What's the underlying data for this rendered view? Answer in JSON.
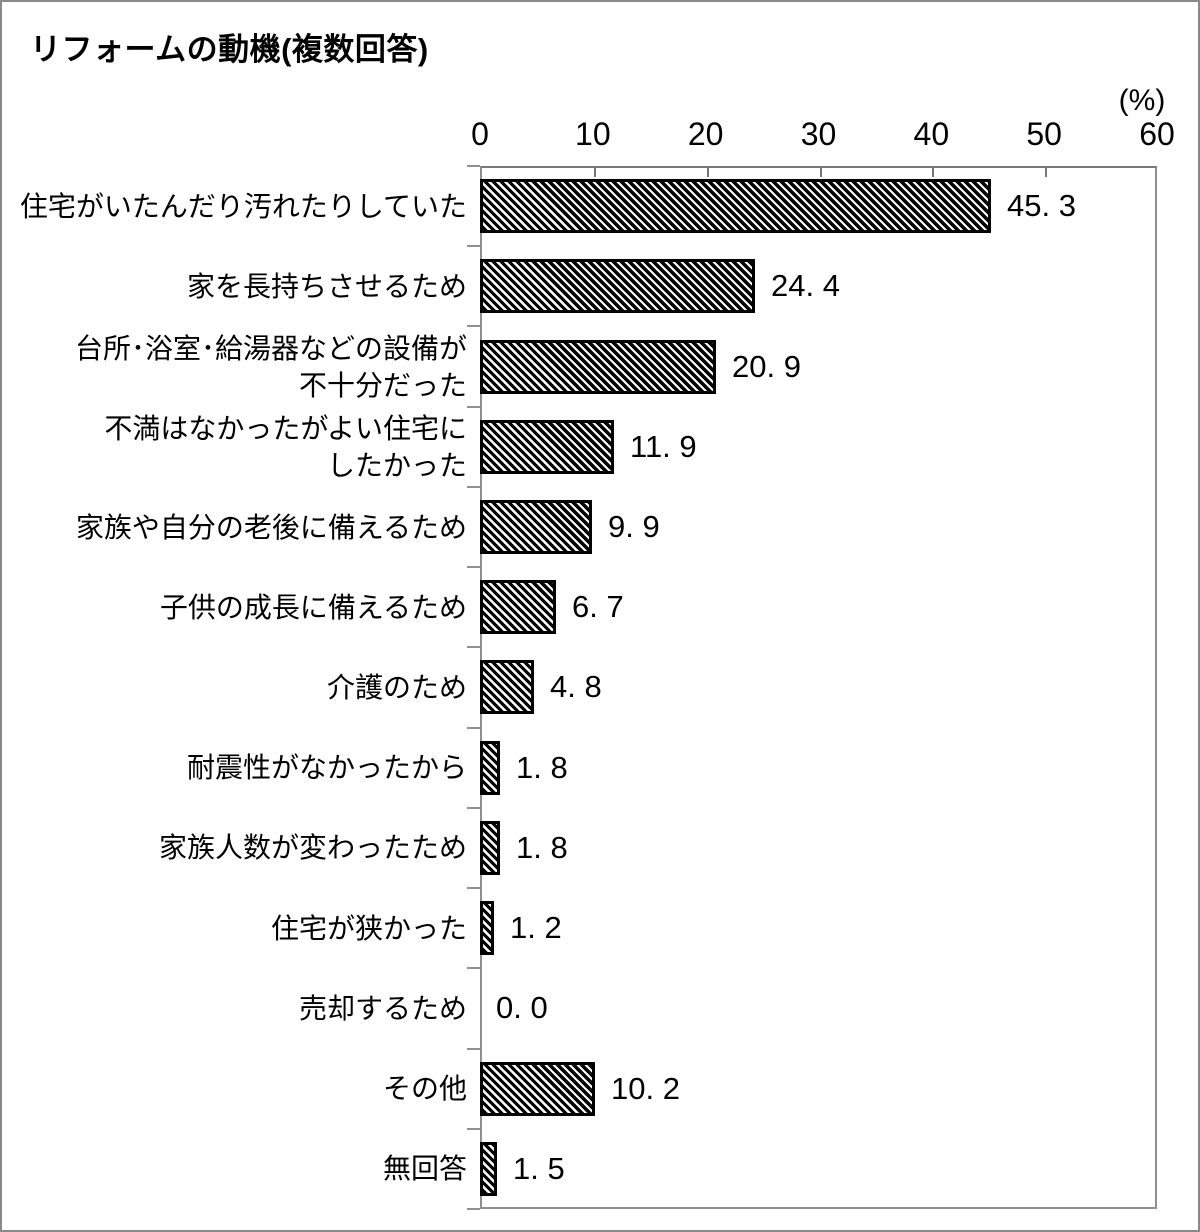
{
  "title": "リフォームの動機(複数回答)",
  "chart_data": {
    "type": "bar",
    "orientation": "horizontal",
    "title": "リフォームの動機(複数回答)",
    "unit_label": "(%)",
    "xlabel": "(%)",
    "ylabel": "",
    "xlim": [
      0,
      60
    ],
    "x_ticks": [
      "0",
      "10",
      "20",
      "30",
      "40",
      "50",
      "60"
    ],
    "grid": false,
    "legend_position": "none",
    "categories": [
      "住宅がいたんだり汚れたりしていた",
      "家を長持ちさせるため",
      "台所･浴室･給湯器などの設備が\n不十分だった",
      "不満はなかったがよい住宅に\nしたかった",
      "家族や自分の老後に備えるため",
      "子供の成長に備えるため",
      "介護のため",
      "耐震性がなかったから",
      "家族人数が変わったため",
      "住宅が狭かった",
      "売却するため",
      "その他",
      "無回答"
    ],
    "values": [
      45.3,
      24.4,
      20.9,
      11.9,
      9.9,
      6.7,
      4.8,
      1.8,
      1.8,
      1.2,
      0.0,
      10.2,
      1.5
    ],
    "value_labels": [
      "45. 3",
      "24. 4",
      "20. 9",
      "11. 9",
      "9. 9",
      "6. 7",
      "4. 8",
      "1. 8",
      "1. 8",
      "1. 2",
      "0. 0",
      "10. 2",
      "1. 5"
    ],
    "bar_style": {
      "fill": "black-white-diagonal-hatch",
      "stroke": "#000000"
    }
  },
  "colors": {
    "background": "#ffffff",
    "text": "#000000",
    "frame": "#8f8f8f",
    "bar_stroke": "#000000",
    "hatch_dark": "#000000",
    "hatch_light": "#ffffff"
  }
}
